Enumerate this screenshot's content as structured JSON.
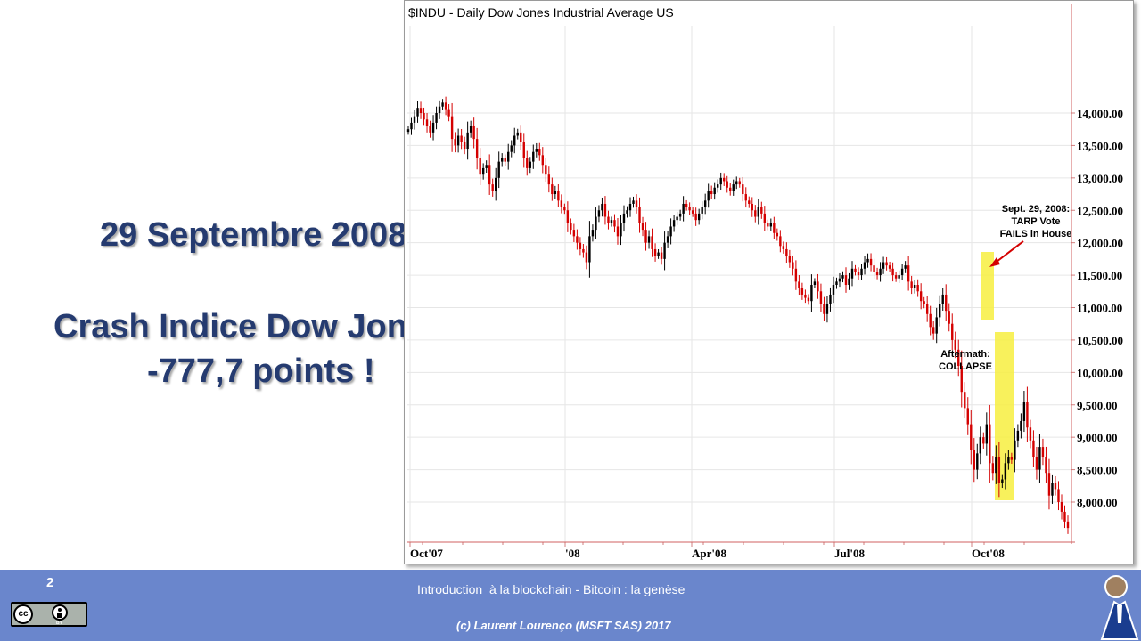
{
  "slide": {
    "title_date": "29 Septembre 2008",
    "title_crash": "Crash Indice Dow Jones",
    "title_points": "-777,7 points !",
    "page_number": "2"
  },
  "footer": {
    "course": "Introduction  à la blockchain - Bitcoin : la genèse",
    "copyright": "(c) Laurent Lourenço (MSFT SAS) 2017",
    "license_badge": "cc-by-icon",
    "license_by_text": "BY",
    "logo": "person-logo-icon",
    "background_color": "#6a86cc"
  },
  "chart_data": {
    "type": "candlestick",
    "title": "$INDU - Daily  Dow Jones Industrial Average  US",
    "ylim": [
      7500,
      14300
    ],
    "y_ticks": [
      "14,000.00",
      "13,500.00",
      "13,000.00",
      "12,500.00",
      "12,000.00",
      "11,500.00",
      "11,000.00",
      "10,500.00",
      "10,000.00",
      "9,500.00",
      "9,000.00",
      "8,500.00",
      "8,000.00"
    ],
    "x_ticks": [
      "Oct'07",
      "'08",
      "Apr'08",
      "Jul'08",
      "Oct'08"
    ],
    "up_color": "#000000",
    "down_color": "#d40000",
    "series": [
      {
        "name": "$INDU",
        "close": [
          13750,
          13850,
          13950,
          14080,
          14000,
          13900,
          13800,
          13700,
          13850,
          14000,
          14100,
          14160,
          14060,
          13950,
          13600,
          13500,
          13650,
          13550,
          13450,
          13700,
          13800,
          13600,
          13300,
          13050,
          13150,
          13200,
          12900,
          12800,
          13000,
          13250,
          13300,
          13250,
          13400,
          13500,
          13650,
          13700,
          13550,
          13300,
          13150,
          13250,
          13400,
          13450,
          13350,
          13200,
          13050,
          12900,
          12750,
          12800,
          12650,
          12550,
          12500,
          12300,
          12200,
          12100,
          12000,
          11900,
          11850,
          11700,
          12100,
          12200,
          12400,
          12500,
          12600,
          12400,
          12300,
          12350,
          12250,
          12100,
          12300,
          12450,
          12500,
          12600,
          12650,
          12550,
          12300,
          12200,
          12000,
          12100,
          11900,
          11800,
          11850,
          11750,
          12000,
          12100,
          12250,
          12350,
          12400,
          12450,
          12600,
          12550,
          12500,
          12450,
          12350,
          12450,
          12550,
          12650,
          12800,
          12750,
          12850,
          12900,
          13000,
          12950,
          12850,
          12800,
          12900,
          12950,
          12900,
          12750,
          12650,
          12600,
          12500,
          12400,
          12550,
          12450,
          12300,
          12250,
          12300,
          12150,
          12100,
          11950,
          11900,
          11800,
          11700,
          11600,
          11400,
          11300,
          11200,
          11150,
          11100,
          11350,
          11400,
          11250,
          11050,
          10900,
          11050,
          11200,
          11350,
          11400,
          11450,
          11500,
          11350,
          11450,
          11600,
          11550,
          11500,
          11600,
          11700,
          11750,
          11650,
          11550,
          11500,
          11600,
          11700,
          11650,
          11600,
          11500,
          11450,
          11500,
          11600,
          11650,
          11400,
          11300,
          11350,
          11250,
          11100,
          11050,
          10900,
          10700,
          10600,
          10850,
          11050,
          11200,
          10950,
          10750,
          10500,
          10350,
          10100,
          9700,
          9450,
          9200,
          8800,
          8500,
          8750,
          9000,
          8900,
          9200,
          8600,
          8450,
          8700,
          8300,
          8350,
          8600,
          8700,
          8650,
          8950,
          9100,
          9250,
          9550,
          9150,
          8950,
          8700,
          8500,
          8850,
          8700,
          8450,
          8100,
          8300,
          8200,
          8000,
          7850,
          7700,
          7600
        ]
      }
    ],
    "annotations": [
      {
        "lines": [
          "Sept. 29, 2008:",
          "TARP Vote",
          "FAILS in House"
        ]
      },
      {
        "lines": [
          "Aftermath:",
          "COLLAPSE"
        ]
      }
    ]
  }
}
